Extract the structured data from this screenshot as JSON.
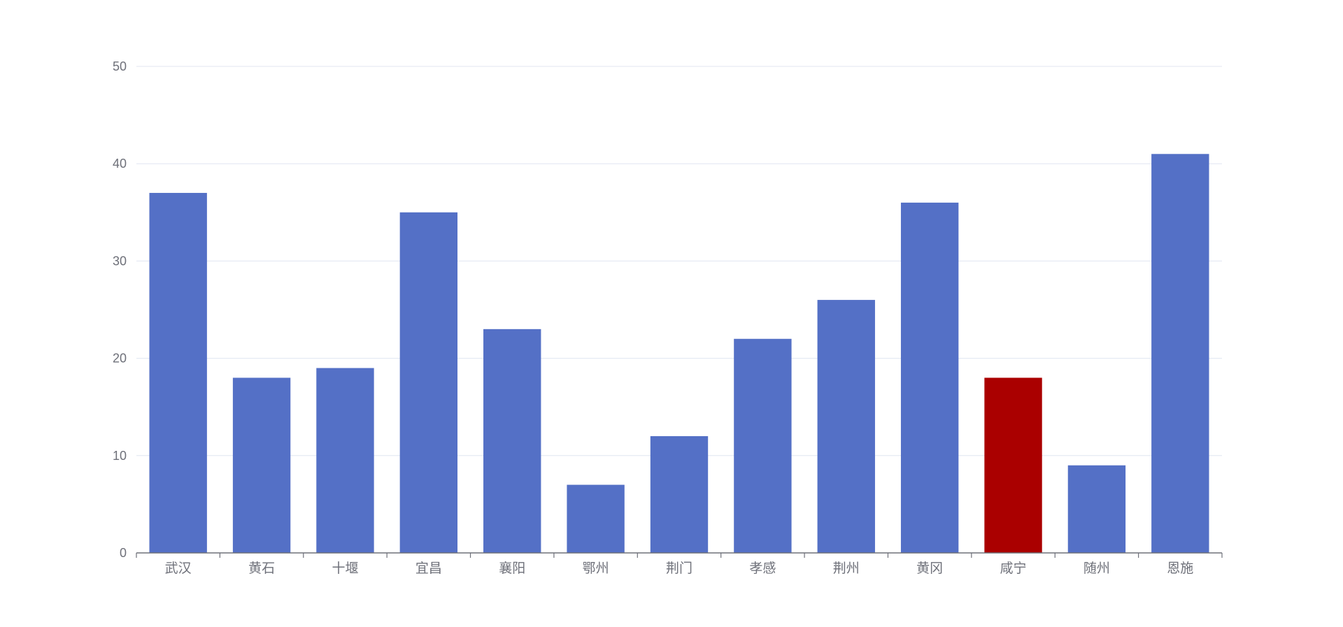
{
  "chart_data": {
    "type": "bar",
    "categories": [
      "武汉",
      "黄石",
      "十堰",
      "宜昌",
      "襄阳",
      "鄂州",
      "荆门",
      "孝感",
      "荆州",
      "黄冈",
      "咸宁",
      "随州",
      "恩施"
    ],
    "values": [
      37,
      18,
      19,
      35,
      23,
      7,
      12,
      22,
      26,
      36,
      18,
      9,
      41
    ],
    "highlight_category": "咸宁",
    "title": "",
    "xlabel": "",
    "ylabel": "",
    "ylim": [
      0,
      50
    ],
    "yticks": [
      0,
      10,
      20,
      30,
      40,
      50
    ],
    "grid": true,
    "legend": "none",
    "colors": {
      "bar": "#5470c6",
      "highlight": "#aa0000",
      "grid": "#e0e6f1",
      "axis": "#6e7079",
      "tick_label": "#6e7079"
    }
  }
}
